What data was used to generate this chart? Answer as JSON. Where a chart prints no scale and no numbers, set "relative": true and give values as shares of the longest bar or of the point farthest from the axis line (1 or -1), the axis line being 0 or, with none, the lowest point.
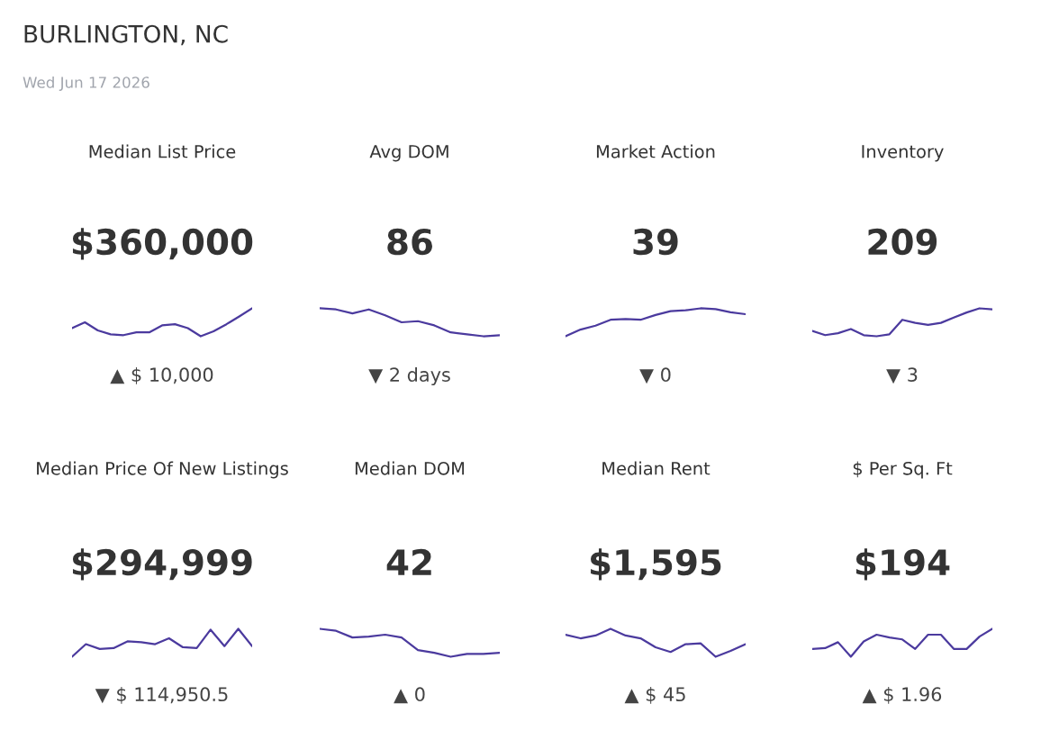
{
  "chart_data": [
    {
      "type": "other",
      "title": "BURLINGTON, NC",
      "subtitle": "Wed Jun 17 2026"
    },
    {
      "type": "line",
      "relative": true,
      "title": "Median List Price",
      "subtitle": "$360,000",
      "annotations": [
        "▲ $ 10,000"
      ],
      "categories": [
        null,
        null,
        null,
        null,
        null,
        null,
        null,
        null,
        null,
        null,
        null,
        null,
        null,
        null,
        null
      ],
      "series": [
        {
          "color": "#4b3a9e",
          "values": [
            0.29,
            0.5,
            0.21,
            0.07,
            0.04,
            0.14,
            0.14,
            0.39,
            0.43,
            0.29,
            0,
            0.18,
            0.43,
            0.71,
            1
          ]
        }
      ]
    },
    {
      "type": "line",
      "relative": true,
      "title": "Avg DOM",
      "subtitle": "86",
      "annotations": [
        "▼ 2 days"
      ],
      "categories": [
        null,
        null,
        null,
        null,
        null,
        null,
        null,
        null,
        null,
        null,
        null,
        null
      ],
      "series": [
        {
          "color": "#4b3a9e",
          "values": [
            1,
            0.96,
            0.82,
            0.96,
            0.75,
            0.5,
            0.54,
            0.39,
            0.14,
            0.07,
            0,
            0.04
          ]
        }
      ]
    },
    {
      "type": "line",
      "relative": true,
      "title": "Market Action",
      "subtitle": "39",
      "annotations": [
        "▼ 0"
      ],
      "categories": [
        null,
        null,
        null,
        null,
        null,
        null,
        null,
        null,
        null,
        null,
        null,
        null,
        null
      ],
      "series": [
        {
          "color": "#4b3a9e",
          "values": [
            0,
            0.24,
            0.38,
            0.59,
            0.62,
            0.59,
            0.76,
            0.9,
            0.93,
            1,
            0.97,
            0.86,
            0.79
          ]
        }
      ]
    },
    {
      "type": "line",
      "relative": true,
      "title": "Inventory",
      "subtitle": "209",
      "annotations": [
        "▼ 3"
      ],
      "categories": [
        null,
        null,
        null,
        null,
        null,
        null,
        null,
        null,
        null,
        null,
        null,
        null,
        null,
        null,
        null
      ],
      "series": [
        {
          "color": "#4b3a9e",
          "values": [
            0.19,
            0.04,
            0.11,
            0.26,
            0.04,
            0,
            0.07,
            0.59,
            0.48,
            0.41,
            0.48,
            0.67,
            0.85,
            1,
            0.96
          ]
        }
      ]
    },
    {
      "type": "line",
      "relative": true,
      "title": "Median Price Of New Listings",
      "subtitle": "$294,999",
      "annotations": [
        "▼ $ 114,950.5"
      ],
      "categories": [
        null,
        null,
        null,
        null,
        null,
        null,
        null,
        null,
        null,
        null,
        null,
        null,
        null,
        null
      ],
      "series": [
        {
          "color": "#4b3a9e",
          "values": [
            0,
            0.45,
            0.28,
            0.31,
            0.55,
            0.52,
            0.45,
            0.66,
            0.34,
            0.31,
            0.97,
            0.38,
            1,
            0.38
          ]
        }
      ]
    },
    {
      "type": "line",
      "relative": true,
      "title": "Median DOM",
      "subtitle": "42",
      "annotations": [
        "▲ 0"
      ],
      "categories": [
        null,
        null,
        null,
        null,
        null,
        null,
        null,
        null,
        null,
        null,
        null,
        null
      ],
      "series": [
        {
          "color": "#4b3a9e",
          "values": [
            1,
            0.93,
            0.69,
            0.72,
            0.79,
            0.69,
            0.24,
            0.14,
            0,
            0.1,
            0.1,
            0.14
          ]
        }
      ]
    },
    {
      "type": "line",
      "relative": true,
      "title": "Median Rent",
      "subtitle": "$1,595",
      "annotations": [
        "▲ $ 45"
      ],
      "categories": [
        null,
        null,
        null,
        null,
        null,
        null,
        null,
        null,
        null,
        null,
        null,
        null,
        null
      ],
      "series": [
        {
          "color": "#4b3a9e",
          "values": [
            0.79,
            0.66,
            0.76,
            1,
            0.76,
            0.66,
            0.34,
            0.17,
            0.45,
            0.48,
            0,
            0.21,
            0.45
          ]
        }
      ]
    },
    {
      "type": "line",
      "relative": true,
      "title": "$ Per Sq. Ft",
      "subtitle": "$194",
      "annotations": [
        "▲ $ 1.96"
      ],
      "categories": [
        null,
        null,
        null,
        null,
        null,
        null,
        null,
        null,
        null,
        null,
        null,
        null,
        null,
        null,
        null
      ],
      "series": [
        {
          "color": "#4b3a9e",
          "values": [
            0.28,
            0.31,
            0.52,
            0,
            0.55,
            0.79,
            0.69,
            0.62,
            0.28,
            0.79,
            0.79,
            0.28,
            0.28,
            0.72,
            1
          ]
        }
      ]
    }
  ]
}
